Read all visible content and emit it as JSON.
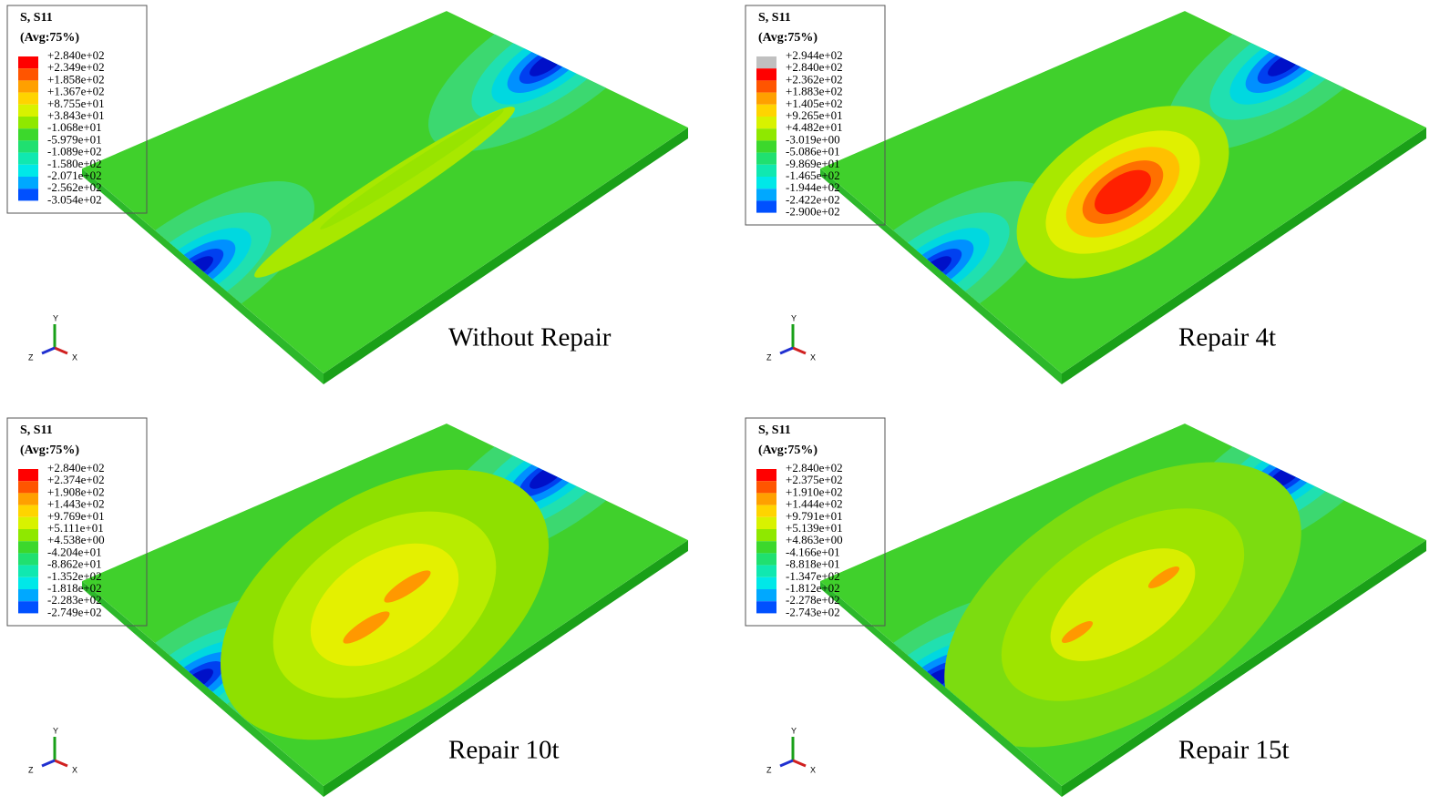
{
  "panels": [
    {
      "legend": {
        "title": "S, S11",
        "avg": "(Avg:75%)",
        "levels": [
          "+2.840e+02",
          "+2.349e+02",
          "+1.858e+02",
          "+1.367e+02",
          "+8.755e+01",
          "+3.843e+01",
          "-1.068e+01",
          "-5.979e+01",
          "-1.089e+02",
          "-1.580e+02",
          "-2.071e+02",
          "-2.562e+02",
          "-3.054e+02"
        ]
      },
      "caption": "Without Repair",
      "triad": {
        "y": "Y",
        "z": "Z",
        "x": "X"
      }
    },
    {
      "legend": {
        "title": "S, S11",
        "avg": "(Avg:75%)",
        "levels": [
          "+2.944e+02",
          "+2.840e+02",
          "+2.362e+02",
          "+1.883e+02",
          "+1.405e+02",
          "+9.265e+01",
          "+4.482e+01",
          "-3.019e+00",
          "-5.086e+01",
          "-9.869e+01",
          "-1.465e+02",
          "-1.944e+02",
          "-2.422e+02",
          "-2.900e+02"
        ]
      },
      "caption": "Repair 4t",
      "triad": {
        "y": "Y",
        "z": "Z",
        "x": "X"
      }
    },
    {
      "legend": {
        "title": "S, S11",
        "avg": "(Avg:75%)",
        "levels": [
          "+2.840e+02",
          "+2.374e+02",
          "+1.908e+02",
          "+1.443e+02",
          "+9.769e+01",
          "+5.111e+01",
          "+4.538e+00",
          "-4.204e+01",
          "-8.862e+01",
          "-1.352e+02",
          "-1.818e+02",
          "-2.283e+02",
          "-2.749e+02"
        ]
      },
      "caption": "Repair 10t",
      "triad": {
        "y": "Y",
        "z": "Z",
        "x": "X"
      }
    },
    {
      "legend": {
        "title": "S, S11",
        "avg": "(Avg:75%)",
        "levels": [
          "+2.840e+02",
          "+2.375e+02",
          "+1.910e+02",
          "+1.444e+02",
          "+9.791e+01",
          "+5.139e+01",
          "+4.863e+00",
          "-4.166e+01",
          "-8.818e+01",
          "-1.347e+02",
          "-1.812e+02",
          "-2.278e+02",
          "-2.743e+02"
        ]
      },
      "caption": "Repair 15t",
      "triad": {
        "y": "Y",
        "z": "Z",
        "x": "X"
      }
    }
  ]
}
